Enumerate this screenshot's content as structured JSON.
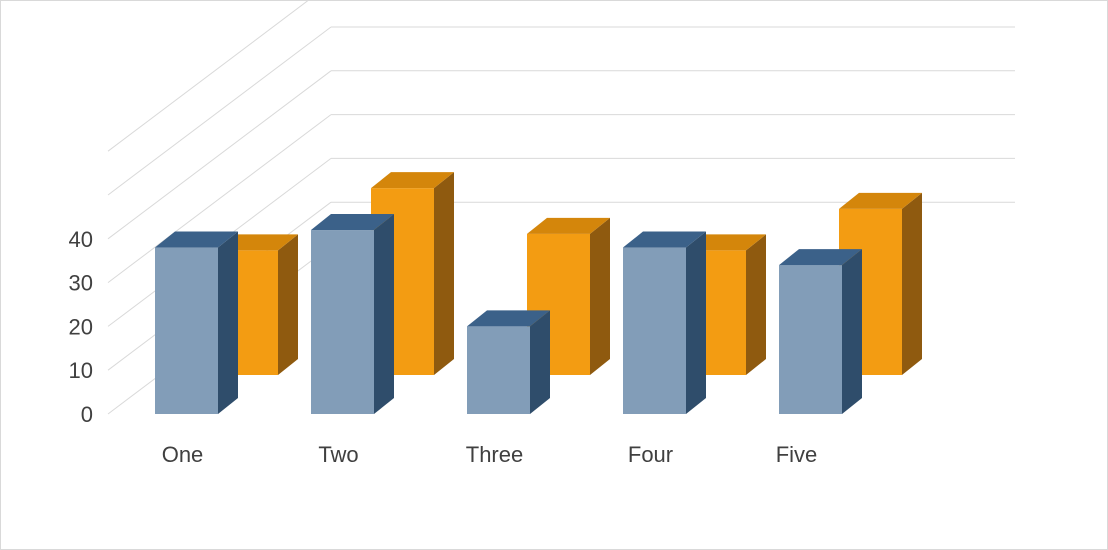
{
  "chart_data": {
    "type": "bar",
    "three_d": true,
    "categories": [
      "One",
      "Two",
      "Three",
      "Four",
      "Five"
    ],
    "series": [
      {
        "values": [
          38,
          42,
          20,
          38,
          34
        ],
        "color": "#829DB8",
        "side_color": "#2F4D6B",
        "top_color": "#3B6189"
      },
      {
        "values": [
          30,
          45,
          34,
          30,
          40
        ],
        "color": "#F39C12",
        "side_color": "#8F5A0F",
        "top_color": "#D4860B"
      }
    ],
    "y_ticks": [
      "0",
      "10",
      "20",
      "30",
      "40"
    ],
    "ylim": [
      0,
      40
    ],
    "grid": true,
    "legend": "none",
    "title": ""
  }
}
